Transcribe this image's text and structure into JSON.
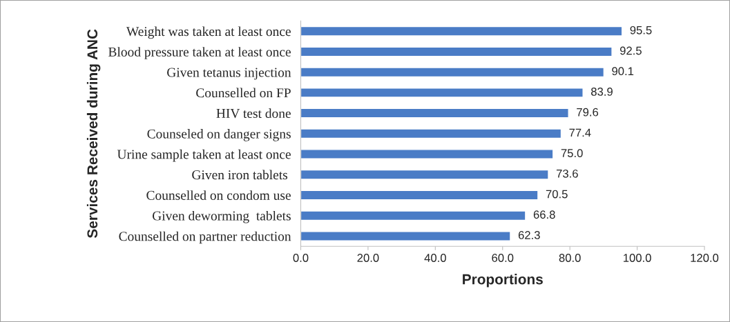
{
  "chart_data": {
    "type": "bar",
    "orientation": "horizontal",
    "ylabel": "Services Received during ANC",
    "xlabel": "Proportions",
    "categories": [
      "Weight was taken at least once",
      "Blood pressure taken at least once",
      "Given tetanus injection",
      "Counselled on FP",
      "HIV test done",
      "Counseled on danger signs",
      "Urine sample taken at least once",
      "Given iron tablets ",
      "Counselled on condom use",
      "Given deworming  tablets",
      "Counselled on partner reduction"
    ],
    "values": [
      95.5,
      92.5,
      90.1,
      83.9,
      79.6,
      77.4,
      75.0,
      73.6,
      70.5,
      66.8,
      62.3
    ],
    "value_labels": [
      "95.5",
      "92.5",
      "90.1",
      "83.9",
      "79.6",
      "77.4",
      "75.0",
      "73.6",
      "70.5",
      "66.8",
      "62.3"
    ],
    "color": "#4a7cc6",
    "xlim": [
      0,
      120
    ],
    "xticks": [
      {
        "value": 0,
        "label": "0.0"
      },
      {
        "value": 20,
        "label": "20.0"
      },
      {
        "value": 40,
        "label": "40.0"
      },
      {
        "value": 60,
        "label": "60.0"
      },
      {
        "value": 80,
        "label": "80.0"
      },
      {
        "value": 100,
        "label": "100.0"
      },
      {
        "value": 120,
        "label": "120.0"
      }
    ],
    "grid": false,
    "legend": false
  }
}
